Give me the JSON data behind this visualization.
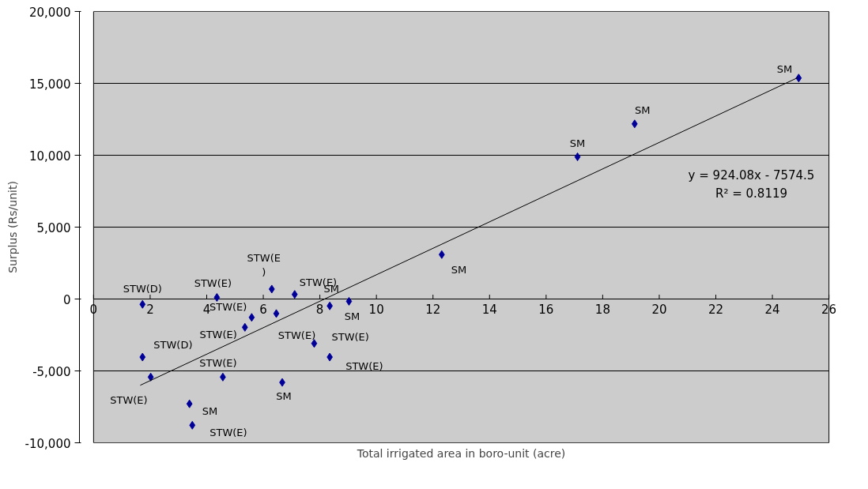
{
  "chart_data": {
    "type": "scatter",
    "xlabel": "Total irrigated area in boro-unit (acre)",
    "ylabel": "Surplus (Rs/unit)",
    "xlim": [
      0,
      26
    ],
    "xticks": [
      0,
      2,
      4,
      6,
      8,
      10,
      12,
      14,
      16,
      18,
      20,
      22,
      24,
      26
    ],
    "ylim": [
      -10000,
      20000
    ],
    "yticks": [
      {
        "value": -10000,
        "label": "-10,000"
      },
      {
        "value": -5000,
        "label": "-5,000"
      },
      0,
      {
        "value": 5000,
        "label": "5,000"
      },
      {
        "value": 10000,
        "label": "10,000"
      },
      {
        "value": 15000,
        "label": "15,000"
      },
      {
        "value": 20000,
        "label": "20,000"
      }
    ],
    "grid": "y",
    "marker": "diamond",
    "series": [
      {
        "color": "#000099",
        "x": [
          1.73,
          4.36,
          6.3,
          7.11,
          8.35,
          9.03,
          5.59,
          6.46,
          5.35,
          7.8,
          8.35,
          1.73,
          2.02,
          4.57,
          6.67,
          3.39,
          3.49,
          12.31,
          17.11,
          19.13,
          24.93
        ],
        "values": [
          -370,
          110,
          690,
          320,
          -480,
          -160,
          -1280,
          -1010,
          -1970,
          -3090,
          -4040,
          -4040,
          -5430,
          -5430,
          -5800,
          -7290,
          -8780,
          3090,
          9890,
          12180,
          15370
        ]
      },
      {
        "type": "line",
        "color": "#000000",
        "x": [
          1.65,
          24.9
        ],
        "values": [
          -6000,
          15400
        ],
        "marker": "none"
      }
    ],
    "annotations": [
      {
        "text": "STW(D)",
        "x": 1.73,
        "y": -370
      },
      {
        "text": "STW(E)",
        "x": 4.36,
        "y": 110
      },
      {
        "text": "STW(E\n)",
        "x": 6.3,
        "y": 690
      },
      {
        "text": "STW(E)",
        "x": 7.11,
        "y": 320
      },
      {
        "text": "SM",
        "x": 8.35,
        "y": -480
      },
      {
        "text": "SM",
        "x": 9.03,
        "y": -160
      },
      {
        "text": "STW(E)",
        "x": 5.59,
        "y": -1280
      },
      {
        "text": "STW(E)",
        "x": 6.46,
        "y": -1010
      },
      {
        "text": "STW(E)",
        "x": 5.35,
        "y": -1970
      },
      {
        "text": "STW(E)",
        "x": 7.8,
        "y": -3090
      },
      {
        "text": "STW(E)",
        "x": 8.35,
        "y": -4040
      },
      {
        "text": "STW(D)",
        "x": 1.73,
        "y": -4040
      },
      {
        "text": "STW(E)",
        "x": 2.02,
        "y": -5430
      },
      {
        "text": "STW(E)",
        "x": 4.57,
        "y": -5430
      },
      {
        "text": "SM",
        "x": 6.67,
        "y": -5800
      },
      {
        "text": "SM",
        "x": 3.39,
        "y": -7290
      },
      {
        "text": "STW(E)",
        "x": 3.49,
        "y": -8780
      },
      {
        "text": "SM",
        "x": 12.31,
        "y": 3090
      },
      {
        "text": "SM",
        "x": 17.11,
        "y": 9890
      },
      {
        "text": "SM",
        "x": 19.13,
        "y": 12180
      },
      {
        "text": "SM",
        "x": 24.93,
        "y": 15370
      },
      "y = 924.08x - 7574.5",
      "R² = 0.8119"
    ]
  }
}
